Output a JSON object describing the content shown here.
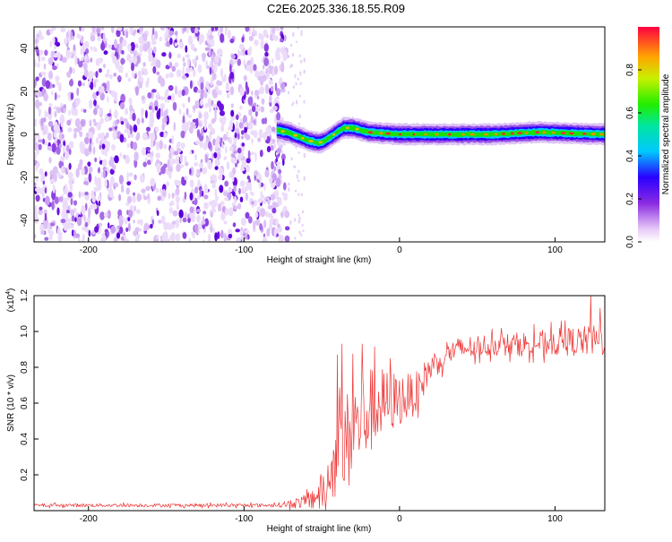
{
  "figure_title": "C2E6.2025.336.18.55.R09",
  "chart_data": [
    {
      "type": "heatmap",
      "name": "spectrogram",
      "xlabel": "Height of straight line (km)",
      "ylabel": "Frequency (Hz)",
      "xlim": [
        -235,
        132
      ],
      "ylim": [
        -50,
        50
      ],
      "xticks": [
        -200,
        -100,
        0,
        100
      ],
      "yticks": [
        -40,
        -20,
        0,
        20,
        40
      ],
      "noise_region_x": [
        -235,
        -72
      ],
      "signal_ridge": [
        {
          "x": -79,
          "y": 2
        },
        {
          "x": -72,
          "y": 1
        },
        {
          "x": -65,
          "y": -1
        },
        {
          "x": -58,
          "y": -3
        },
        {
          "x": -52,
          "y": -4
        },
        {
          "x": -48,
          "y": -3
        },
        {
          "x": -44,
          "y": -1
        },
        {
          "x": -40,
          "y": 1
        },
        {
          "x": -36,
          "y": 3
        },
        {
          "x": -30,
          "y": 3
        },
        {
          "x": -20,
          "y": 1
        },
        {
          "x": 0,
          "y": 0
        },
        {
          "x": 30,
          "y": 0
        },
        {
          "x": 60,
          "y": 0
        },
        {
          "x": 90,
          "y": 1
        },
        {
          "x": 132,
          "y": 0
        }
      ],
      "colorbar": {
        "label": "Normalized spectral amplitude",
        "range": [
          0,
          1
        ],
        "ticks": [
          "0.0",
          "0.2",
          "0.4",
          "0.6",
          "0.8"
        ],
        "tick_values": [
          0,
          0.2,
          0.4,
          0.6,
          0.8
        ]
      }
    },
    {
      "type": "line",
      "name": "snr",
      "xlabel": "Height of straight line (km)",
      "ylabel": "SNR (10 * v/v)",
      "y_multiplier": "(x10",
      "y_multiplier_exp": "4",
      "xlim": [
        -235,
        132
      ],
      "ylim": [
        0,
        1.2
      ],
      "xticks": [
        -200,
        -100,
        0,
        100
      ],
      "yticks": [
        "0.2",
        "0.4",
        "0.6",
        "0.8",
        "1.0",
        "1.2"
      ],
      "ytick_values": [
        0.2,
        0.4,
        0.6,
        0.8,
        1.0,
        1.2
      ],
      "color": "#ee3333",
      "trend": [
        {
          "x": -235,
          "y": 0.03
        },
        {
          "x": -80,
          "y": 0.03
        },
        {
          "x": -60,
          "y": 0.05
        },
        {
          "x": -50,
          "y": 0.1
        },
        {
          "x": -45,
          "y": 0.2
        },
        {
          "x": -40,
          "y": 0.3
        },
        {
          "x": -35,
          "y": 0.35
        },
        {
          "x": -30,
          "y": 0.45
        },
        {
          "x": -25,
          "y": 0.5
        },
        {
          "x": -20,
          "y": 0.55
        },
        {
          "x": -10,
          "y": 0.6
        },
        {
          "x": 0,
          "y": 0.62
        },
        {
          "x": 10,
          "y": 0.65
        },
        {
          "x": 20,
          "y": 0.8
        },
        {
          "x": 30,
          "y": 0.88
        },
        {
          "x": 50,
          "y": 0.92
        },
        {
          "x": 80,
          "y": 0.93
        },
        {
          "x": 100,
          "y": 0.94
        },
        {
          "x": 132,
          "y": 0.95
        }
      ],
      "noise_amplitude": [
        {
          "x": -235,
          "y": 0.01
        },
        {
          "x": -80,
          "y": 0.01
        },
        {
          "x": -60,
          "y": 0.04
        },
        {
          "x": -45,
          "y": 0.15
        },
        {
          "x": -35,
          "y": 0.3
        },
        {
          "x": -20,
          "y": 0.25
        },
        {
          "x": 0,
          "y": 0.15
        },
        {
          "x": 20,
          "y": 0.08
        },
        {
          "x": 60,
          "y": 0.06
        },
        {
          "x": 132,
          "y": 0.09
        }
      ],
      "peaks": [
        {
          "x": -40,
          "y": 0.87
        },
        {
          "x": -37,
          "y": 0.93
        },
        {
          "x": -24,
          "y": 0.93
        },
        {
          "x": -6,
          "y": 0.85
        },
        {
          "x": 123,
          "y": 1.2
        },
        {
          "x": 129,
          "y": 1.13
        }
      ]
    }
  ]
}
